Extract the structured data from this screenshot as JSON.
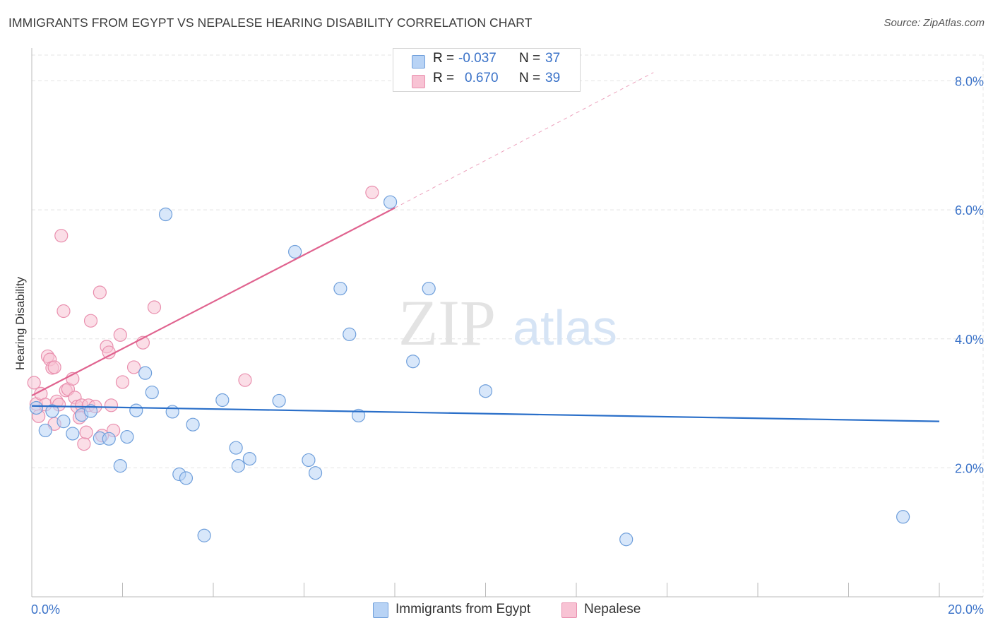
{
  "header": {
    "title": "IMMIGRANTS FROM EGYPT VS NEPALESE HEARING DISABILITY CORRELATION CHART",
    "source": "Source: ZipAtlas.com"
  },
  "watermark": {
    "zip": "ZIP",
    "atlas": "atlas"
  },
  "legend": {
    "rows": [
      {
        "r_label": "R =",
        "r_value": "-0.037",
        "n_label": "N =",
        "n_value": "37"
      },
      {
        "r_label": "R =",
        "r_value": "0.670",
        "n_label": "N =",
        "n_value": "39"
      }
    ]
  },
  "bottom_legend": {
    "egypt": "Immigrants from Egypt",
    "nepalese": "Nepalese"
  },
  "colors": {
    "egypt_fill": "#b8d3f5",
    "egypt_stroke": "#6f9fdb",
    "egypt_line": "#2a6fc9",
    "nepal_fill": "#f8c3d4",
    "nepal_stroke": "#e98fae",
    "nepal_line": "#e0638f",
    "axis_label": "#3a72c8",
    "grid": "#e4e4e4"
  },
  "chart_data": {
    "type": "scatter",
    "title": "IMMIGRANTS FROM EGYPT VS NEPALESE HEARING DISABILITY CORRELATION CHART",
    "xlabel": "",
    "ylabel": "Hearing Disability",
    "xlim": [
      0,
      20
    ],
    "ylim": [
      0,
      8.4
    ],
    "x_tick_labels": [
      {
        "value": 0,
        "label": "0.0%"
      },
      {
        "value": 20,
        "label": "20.0%"
      }
    ],
    "y_tick_labels": [
      {
        "value": 2,
        "label": "2.0%"
      },
      {
        "value": 4,
        "label": "4.0%"
      },
      {
        "value": 6,
        "label": "6.0%"
      },
      {
        "value": 8,
        "label": "8.0%"
      }
    ],
    "series": [
      {
        "name": "Immigrants from Egypt",
        "R": -0.037,
        "N": 37,
        "trend": {
          "x0": 0,
          "y0": 2.96,
          "x1": 20,
          "y1": 2.72
        },
        "points": [
          [
            0.1,
            2.93
          ],
          [
            0.3,
            2.58
          ],
          [
            0.45,
            2.88
          ],
          [
            0.7,
            2.72
          ],
          [
            0.9,
            2.53
          ],
          [
            1.1,
            2.82
          ],
          [
            1.3,
            2.88
          ],
          [
            1.5,
            2.46
          ],
          [
            1.7,
            2.45
          ],
          [
            1.95,
            2.03
          ],
          [
            2.1,
            2.48
          ],
          [
            2.3,
            2.89
          ],
          [
            2.5,
            3.47
          ],
          [
            2.65,
            3.17
          ],
          [
            2.95,
            5.93
          ],
          [
            3.1,
            2.87
          ],
          [
            3.25,
            1.9
          ],
          [
            3.4,
            1.84
          ],
          [
            3.55,
            2.67
          ],
          [
            3.8,
            0.95
          ],
          [
            4.2,
            3.05
          ],
          [
            4.5,
            2.31
          ],
          [
            4.55,
            2.03
          ],
          [
            4.8,
            2.14
          ],
          [
            5.45,
            3.04
          ],
          [
            5.8,
            5.35
          ],
          [
            6.1,
            2.12
          ],
          [
            6.25,
            1.92
          ],
          [
            6.8,
            4.78
          ],
          [
            7.0,
            4.07
          ],
          [
            7.2,
            2.81
          ],
          [
            7.9,
            6.12
          ],
          [
            8.4,
            3.65
          ],
          [
            8.75,
            4.78
          ],
          [
            10.0,
            3.19
          ],
          [
            13.1,
            0.89
          ],
          [
            19.2,
            1.24
          ]
        ]
      },
      {
        "name": "Nepalese",
        "R": 0.67,
        "N": 39,
        "trend": {
          "x0": 0,
          "y0": 3.12,
          "x1": 8.0,
          "y1": 6.03
        },
        "trend_dashed_to": {
          "x": 13.7,
          "y": 8.13
        },
        "points": [
          [
            0.05,
            3.32
          ],
          [
            0.1,
            2.99
          ],
          [
            0.15,
            2.8
          ],
          [
            0.2,
            3.15
          ],
          [
            0.3,
            2.98
          ],
          [
            0.35,
            3.73
          ],
          [
            0.4,
            3.68
          ],
          [
            0.45,
            3.55
          ],
          [
            0.5,
            3.56
          ],
          [
            0.5,
            2.68
          ],
          [
            0.55,
            3.03
          ],
          [
            0.6,
            2.98
          ],
          [
            0.65,
            5.6
          ],
          [
            0.7,
            4.43
          ],
          [
            0.75,
            3.2
          ],
          [
            0.8,
            3.22
          ],
          [
            0.9,
            3.38
          ],
          [
            0.95,
            3.09
          ],
          [
            1.0,
            2.95
          ],
          [
            1.05,
            2.78
          ],
          [
            1.1,
            2.97
          ],
          [
            1.15,
            2.37
          ],
          [
            1.2,
            2.55
          ],
          [
            1.25,
            2.97
          ],
          [
            1.3,
            4.28
          ],
          [
            1.4,
            2.95
          ],
          [
            1.5,
            4.72
          ],
          [
            1.55,
            2.5
          ],
          [
            1.65,
            3.88
          ],
          [
            1.7,
            3.79
          ],
          [
            1.75,
            2.97
          ],
          [
            1.8,
            2.58
          ],
          [
            1.95,
            4.06
          ],
          [
            2.0,
            3.33
          ],
          [
            2.25,
            3.56
          ],
          [
            2.45,
            3.94
          ],
          [
            2.7,
            4.49
          ],
          [
            4.7,
            3.36
          ],
          [
            7.5,
            6.27
          ]
        ]
      }
    ]
  }
}
